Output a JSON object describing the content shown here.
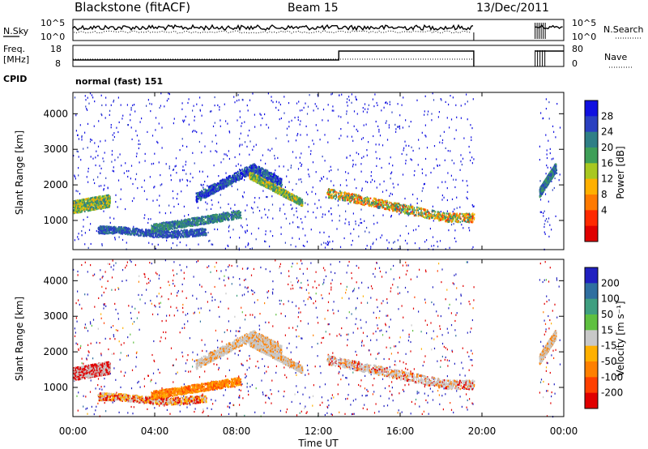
{
  "header": {
    "station": "Blackstone (fitACF)",
    "beam": "Beam 15",
    "date": "13/Dec/2011"
  },
  "noise_panel": {
    "left_label": "N.Sky",
    "right_label": "N.Search",
    "left_ticks": [
      "10^5",
      "10^0"
    ],
    "right_ticks": [
      "10^5",
      "10^0"
    ]
  },
  "freq_panel": {
    "left_label_1": "Freq.",
    "left_label_2": "[MHz]",
    "right_label": "Nave",
    "left_ticks": [
      "18",
      "8"
    ],
    "right_ticks": [
      "80",
      "0"
    ]
  },
  "cpid": {
    "label": "CPID",
    "value": "normal (fast) 151"
  },
  "chart_data": [
    {
      "type": "heatmap",
      "name": "power",
      "ylabel": "Slant Range [km]",
      "xlabel": "Time UT",
      "x_ticks": [
        "00:00",
        "04:00",
        "08:00",
        "12:00",
        "16:00",
        "20:00",
        "00:00"
      ],
      "x_range_hours": [
        0,
        24
      ],
      "y_ticks": [
        1000,
        2000,
        3000,
        4000
      ],
      "ylim": [
        180,
        4600
      ],
      "colorbar": {
        "label": "Power [dB]",
        "ticks": [
          4,
          8,
          12,
          16,
          20,
          24,
          28
        ],
        "range": [
          0,
          30
        ],
        "colors": [
          "#1010e0",
          "#2a40c0",
          "#2f7f86",
          "#3f9f58",
          "#a8c820",
          "#ffb000",
          "#ff7a00",
          "#ff2a00",
          "#e00000"
        ]
      }
    },
    {
      "type": "heatmap",
      "name": "velocity",
      "ylabel": "Slant Range [km]",
      "xlabel": "Time UT",
      "x_ticks": [
        "00:00",
        "04:00",
        "08:00",
        "12:00",
        "16:00",
        "20:00",
        "00:00"
      ],
      "x_range_hours": [
        0,
        24
      ],
      "y_ticks": [
        1000,
        2000,
        3000,
        4000
      ],
      "ylim": [
        180,
        4600
      ],
      "colorbar": {
        "label": "Velocity [m s⁻¹]",
        "ticks": [
          "200",
          "100",
          "50",
          "15",
          "-15",
          "-50",
          "-100",
          "-200"
        ],
        "colors": [
          "#2020c0",
          "#2f6fa0",
          "#3f9f80",
          "#5fc040",
          "#c8c8c8",
          "#ffb000",
          "#ff8000",
          "#ff4000",
          "#e00000"
        ]
      }
    }
  ]
}
